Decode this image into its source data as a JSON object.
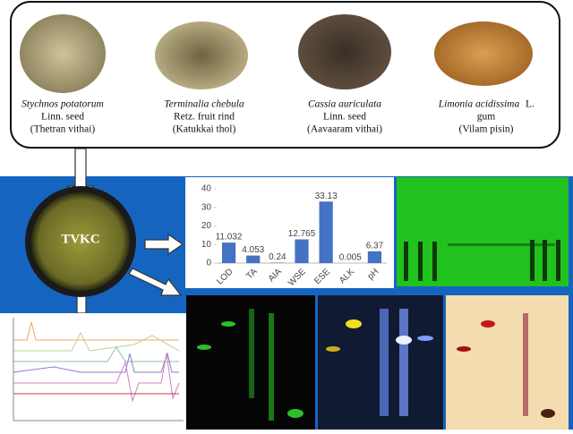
{
  "plants": [
    {
      "name": "Stychnos potatorum",
      "line2": "Linn. seed",
      "line3": "(Thetran vithai)"
    },
    {
      "name": "Terminalia chebula",
      "line2": "Retz. fruit rind",
      "line3": "(Katukkai thol)"
    },
    {
      "name": "Cassia auriculata",
      "line2": "Linn. seed",
      "line3": "(Aavaaram vithai)"
    },
    {
      "name": "Limonia acidissima",
      "authority": "L.",
      "line2": "gum",
      "line3": "(Vilam pisin)"
    }
  ],
  "center_label": "TVKC",
  "chart_data": {
    "type": "bar",
    "categories": [
      "LOD",
      "TA",
      "AIA",
      "WSE",
      "ESE",
      "ALK",
      "pH"
    ],
    "values": [
      11.032,
      4.053,
      0.24,
      12.765,
      33.13,
      0.005,
      6.37
    ],
    "color": "#4472c4",
    "ylim": [
      0,
      40
    ],
    "yticks": [
      0,
      10,
      20,
      30,
      40
    ]
  }
}
